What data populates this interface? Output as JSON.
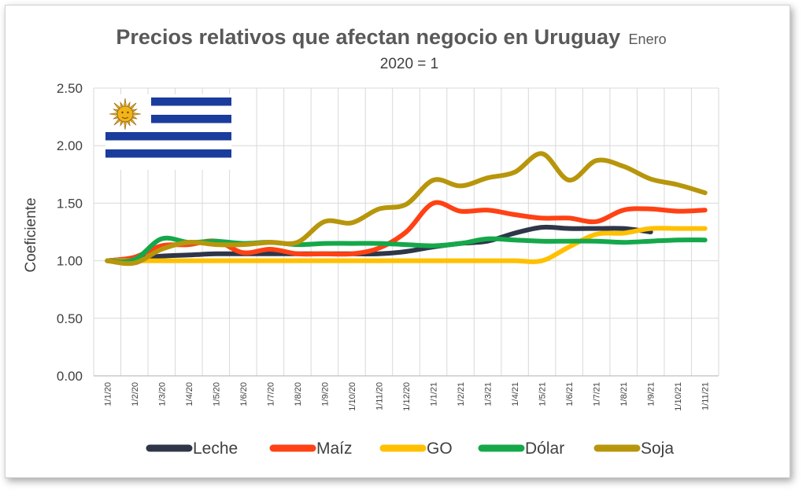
{
  "chart_data": {
    "type": "line",
    "title": "Precios relativos que afectan negocio en Uruguay",
    "title_suffix": "Enero",
    "subtitle": "2020 = 1",
    "ylabel": "Coeficiente",
    "xlabel": "",
    "ylim": [
      0,
      2.5
    ],
    "yticks": [
      "0.00",
      "0.50",
      "1.00",
      "1.50",
      "2.00",
      "2.50"
    ],
    "grid": true,
    "legend_position": "bottom",
    "categories": [
      "1/1/20",
      "1/2/20",
      "1/3/20",
      "1/4/20",
      "1/5/20",
      "1/6/20",
      "1/7/20",
      "1/8/20",
      "1/9/20",
      "1/10/20",
      "1/11/20",
      "1/12/20",
      "1/1/21",
      "1/2/21",
      "1/3/21",
      "1/4/21",
      "1/5/21",
      "1/6/21",
      "1/7/21",
      "1/8/21",
      "1/9/21",
      "1/10/21",
      "1/11/21"
    ],
    "series": [
      {
        "name": "Leche",
        "color": "#2e3648",
        "values": [
          1.0,
          1.02,
          1.04,
          1.05,
          1.06,
          1.06,
          1.06,
          1.06,
          1.06,
          1.06,
          1.06,
          1.08,
          1.12,
          1.15,
          1.17,
          1.24,
          1.29,
          1.28,
          1.28,
          1.28,
          1.25,
          null,
          null
        ]
      },
      {
        "name": "Maíz",
        "color": "#ff4114",
        "values": [
          1.0,
          1.03,
          1.13,
          1.14,
          1.17,
          1.07,
          1.1,
          1.06,
          1.06,
          1.06,
          1.11,
          1.25,
          1.5,
          1.43,
          1.44,
          1.4,
          1.37,
          1.37,
          1.34,
          1.44,
          1.45,
          1.43,
          1.44
        ]
      },
      {
        "name": "GO",
        "color": "#ffc000",
        "values": [
          1.0,
          1.0,
          1.0,
          1.0,
          1.0,
          1.0,
          1.0,
          1.0,
          1.0,
          1.0,
          1.0,
          1.0,
          1.0,
          1.0,
          1.0,
          1.0,
          1.0,
          1.12,
          1.23,
          1.24,
          1.28,
          1.28,
          1.28
        ]
      },
      {
        "name": "Dólar",
        "color": "#15a84a",
        "values": [
          1.0,
          1.01,
          1.19,
          1.16,
          1.17,
          1.15,
          1.16,
          1.14,
          1.15,
          1.15,
          1.15,
          1.14,
          1.13,
          1.15,
          1.19,
          1.18,
          1.17,
          1.17,
          1.17,
          1.16,
          1.17,
          1.18,
          1.18
        ]
      },
      {
        "name": "Soja",
        "color": "#b8960c",
        "values": [
          1.0,
          0.98,
          1.1,
          1.16,
          1.14,
          1.14,
          1.16,
          1.16,
          1.34,
          1.33,
          1.45,
          1.49,
          1.7,
          1.65,
          1.72,
          1.77,
          1.93,
          1.7,
          1.87,
          1.82,
          1.71,
          1.66,
          1.59
        ]
      }
    ]
  },
  "flag": {
    "stripe_color": "#1a3c9c",
    "field_color": "#ffffff",
    "sun_color": "#f2b418",
    "icon": "uruguay-flag-icon"
  }
}
